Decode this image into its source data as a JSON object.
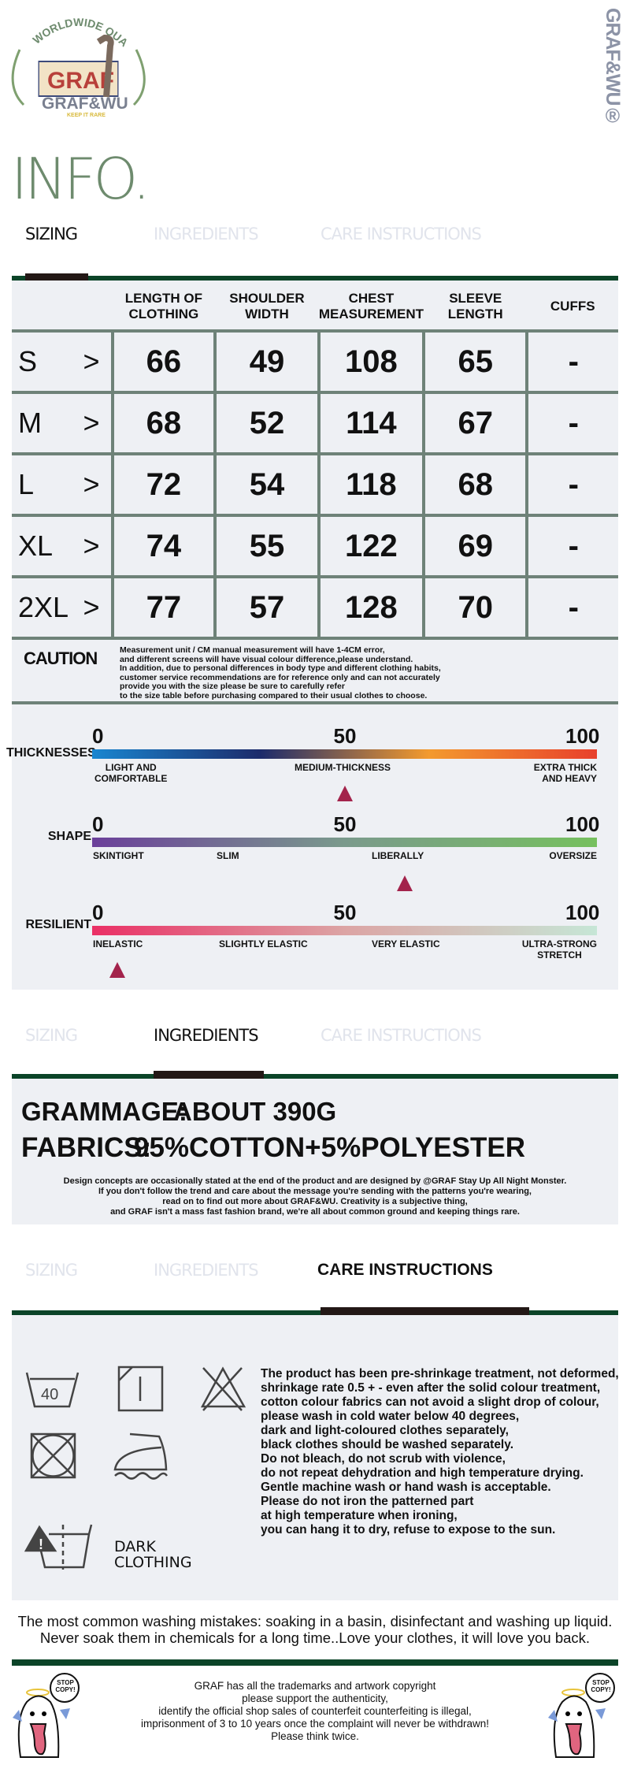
{
  "brand": {
    "logo_text": "GRAF",
    "logo_arc": "WORLDWIDE QUALITY",
    "logo_name": "GRAF&WU",
    "logo_tagline": "KEEP IT RARE",
    "vertical_mark": "GRAF&WU®"
  },
  "page_title": "INFO.",
  "tabs": [
    "SIZING",
    "INGREDIENTS",
    "CARE INSTRUCTIONS"
  ],
  "sizing": {
    "headers": [
      "",
      "LENGTH OF\nCLOTHING",
      "SHOULDER\nWIDTH",
      "CHEST\nMEASUREMENT",
      "SLEEVE\nLENGTH",
      "CUFFS"
    ],
    "rows": [
      {
        "size": "S",
        "arrow": ">",
        "values": [
          "66",
          "49",
          "108",
          "65",
          "-"
        ]
      },
      {
        "size": "M",
        "arrow": ">",
        "values": [
          "68",
          "52",
          "114",
          "67",
          "-"
        ]
      },
      {
        "size": "L",
        "arrow": ">",
        "values": [
          "72",
          "54",
          "118",
          "68",
          "-"
        ]
      },
      {
        "size": "XL",
        "arrow": ">",
        "values": [
          "74",
          "55",
          "122",
          "69",
          "-"
        ]
      },
      {
        "size": "2XL",
        "arrow": ">",
        "values": [
          "77",
          "57",
          "128",
          "70",
          "-"
        ]
      }
    ],
    "caution_label": "CAUTION",
    "caution_lines": [
      "Measurement unit / CM manual measurement will have 1-4CM error,",
      "and different screens will have visual colour difference,please understand.",
      "In addition, due to personal differences in body type and different clothing habits,",
      "customer service recommendations are for reference only and can not accurately",
      "provide you with the size please be sure to carefully refer",
      "to the size table before purchasing compared to their usual clothes to choose."
    ]
  },
  "scales": [
    {
      "label": "THICKNESSES",
      "ticks": [
        "0",
        "50",
        "100"
      ],
      "value": 50,
      "gradient": [
        "#1a86d0",
        "#1c2b6b",
        "#f39a2e",
        "#e8402c"
      ],
      "captions": [
        "LIGHT AND\nCOMFORTABLE",
        "MEDIUM-THICKNESS",
        "EXTRA THICK\nAND HEAVY"
      ]
    },
    {
      "label": "SHAPE",
      "ticks": [
        "0",
        "50",
        "100"
      ],
      "value": 62,
      "gradient": [
        "#6b3f9a",
        "#7a9a8c",
        "#76c05e"
      ],
      "captions": [
        "SKINTIGHT",
        "SLIM",
        "LIBERALLY",
        "OVERSIZE"
      ]
    },
    {
      "label": "RESILIENT",
      "ticks": [
        "0",
        "50",
        "100"
      ],
      "value": 5,
      "gradient": [
        "#ea2f65",
        "#dca4a4",
        "#c6e6d6"
      ],
      "captions": [
        "INELASTIC",
        "SLIGHTLY ELASTIC",
        "VERY ELASTIC",
        "ULTRA-STRONG\nSTRETCH"
      ]
    }
  ],
  "ingredients": {
    "grammage_label": "GRAMMAGE:",
    "grammage_value": "ABOUT 390G",
    "fabrics_label": "FABRICS:",
    "fabrics_value": "95%COTTON+5%POLYESTER",
    "notes": [
      "Design concepts are occasionally stated at the end of the product and are designed by @GRAF Stay Up All Night Monster.",
      "If you don't follow the trend and care about the message you're sending with the patterns you're wearing,",
      "read on to find out more about GRAF&WU. Creativity is a subjective thing,",
      "and GRAF isn't a mass fast fashion brand, we're all about common ground and keeping things rare."
    ]
  },
  "care": {
    "wash_temp": "40",
    "dark_label": "DARK\nCLOTHING",
    "icons": [
      "wash-40-icon",
      "tumble-dry-icon",
      "no-bleach-icon",
      "no-dryer-icon",
      "iron-steam-icon",
      "dark-wash-separately-icon"
    ],
    "lines": [
      "The product has been pre-shrinkage treatment, not deformed,",
      "shrinkage rate 0.5 + - even after the solid colour treatment,",
      "cotton colour fabrics can not avoid a slight drop of colour,",
      "please wash in cold water below 40 degrees,",
      "dark and light-coloured clothes separately,",
      "black clothes should be washed separately.",
      "Do not bleach, do not scrub with violence,",
      "do not repeat dehydration and high temperature drying.",
      "Gentle machine wash or hand wash is acceptable.",
      "Please do not iron the patterned part",
      "at high temperature when ironing,",
      "you can hang it to dry, refuse to expose to the sun."
    ],
    "mistakes": [
      "The most common washing mistakes: soaking in a basin, disinfectant and washing up liquid.",
      "Never soak them in chemicals for a long time..Love your clothes, it will love you back."
    ]
  },
  "footer": {
    "mascot_bubble": "STOP\nCOPY!",
    "lines": [
      "GRAF has all the trademarks and artwork copyright",
      "please support the authenticity,",
      "identify the official shop sales of counterfeit counterfeiting is illegal,",
      "imprisonment of 3 to 10 years once the complaint will never be withdrawn!",
      "Please think twice."
    ]
  },
  "colors": {
    "accent_green": "#0b4428",
    "title_green": "#6e8b6e",
    "panel": "#eef0f4",
    "marker": "#a3234b"
  }
}
